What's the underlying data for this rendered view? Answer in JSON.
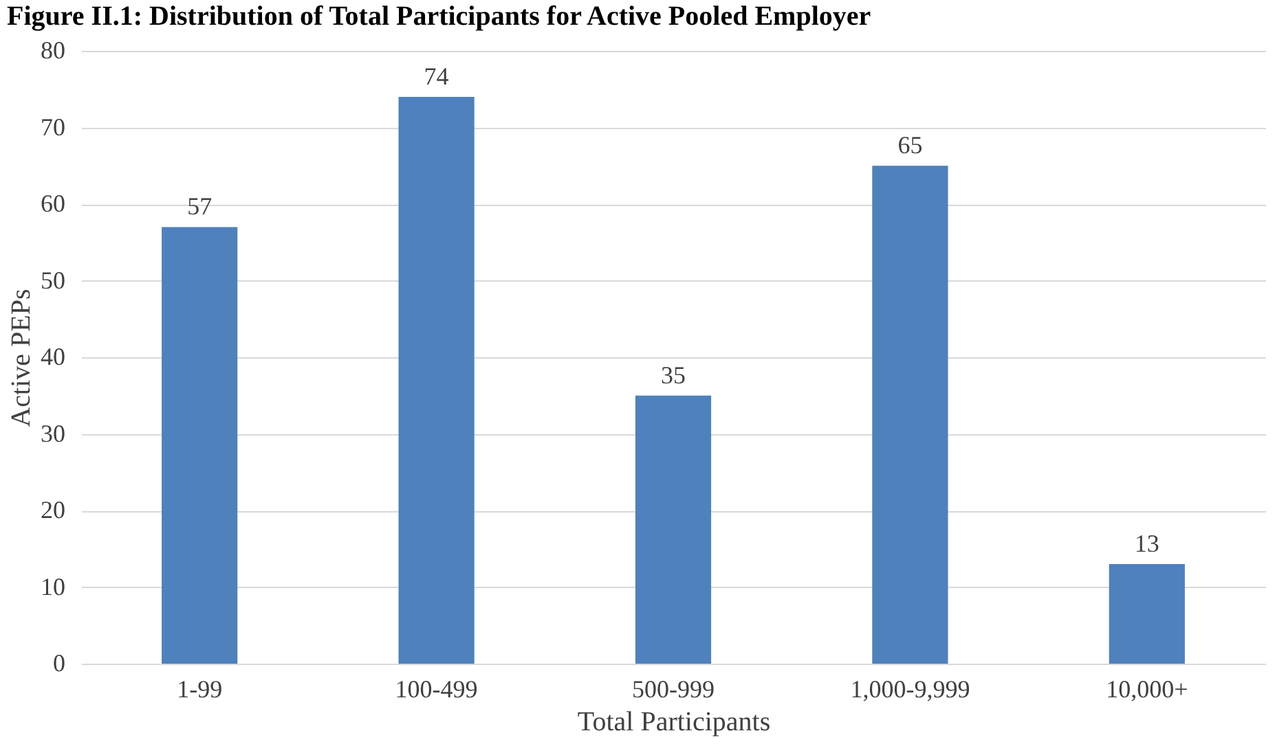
{
  "chart_data": {
    "type": "bar",
    "title": "Figure II.1: Distribution of Total Participants for Active Pooled Employer",
    "categories": [
      "1-99",
      "100-499",
      "500-999",
      "1,000-9,999",
      "10,000+"
    ],
    "values": [
      57,
      74,
      35,
      65,
      13
    ],
    "color": "#4f81bd",
    "xlabel": "Total Participants",
    "ylabel": "Active PEPs",
    "ylim": [
      0,
      80
    ],
    "yticks": [
      0,
      10,
      20,
      30,
      40,
      50,
      60,
      70,
      80
    ],
    "grid": "y",
    "data_labels": true
  }
}
